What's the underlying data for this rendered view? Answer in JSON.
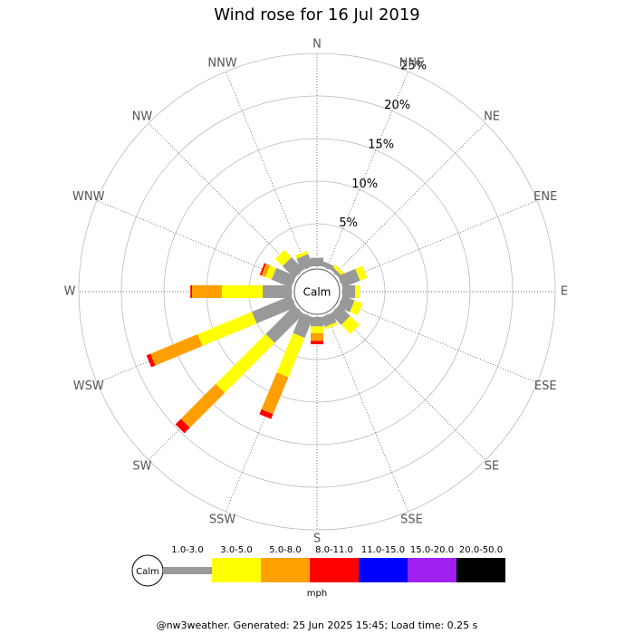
{
  "chart_data": {
    "type": "windrose",
    "title": "Wind rose for 16 Jul 2019",
    "calm_label": "Calm",
    "categories": [
      "N",
      "NNE",
      "NE",
      "ENE",
      "E",
      "ESE",
      "SE",
      "SSE",
      "S",
      "SSW",
      "SW",
      "WSW",
      "W",
      "WNW",
      "NW",
      "NNW"
    ],
    "series": [
      {
        "name": "1.0-3.0",
        "color": "#999999",
        "values": [
          1.0,
          0.6,
          0.4,
          2.2,
          1.5,
          1.5,
          1.8,
          1.2,
          1.1,
          2.6,
          4.8,
          5.0,
          3.4,
          2.5,
          2.0,
          1.5
        ]
      },
      {
        "name": "3.0-5.0",
        "color": "#ffff00",
        "values": [
          0.0,
          0.0,
          0.4,
          0.9,
          0.5,
          1.0,
          1.5,
          0.3,
          0.8,
          5.0,
          8.3,
          6.9,
          4.8,
          0.8,
          1.2,
          0.4
        ]
      },
      {
        "name": "5.0-8.0",
        "color": "#ff9f00",
        "values": [
          0,
          0,
          0,
          0,
          0,
          0,
          0,
          0,
          0.9,
          4.7,
          5.8,
          6.0,
          3.5,
          0.5,
          0,
          0
        ]
      },
      {
        "name": "8.0-11.0",
        "color": "#ff0000",
        "values": [
          0,
          0,
          0,
          0,
          0,
          0,
          0,
          0,
          0.4,
          0.6,
          0.9,
          0.5,
          0.2,
          0.2,
          0,
          0
        ]
      },
      {
        "name": "11.0-15.0",
        "color": "#0000ff",
        "values": [
          0,
          0,
          0,
          0,
          0,
          0,
          0,
          0,
          0,
          0,
          0,
          0,
          0,
          0,
          0,
          0
        ]
      },
      {
        "name": "15.0-20.0",
        "color": "#a020f0",
        "values": [
          0,
          0,
          0,
          0,
          0,
          0,
          0,
          0,
          0,
          0,
          0,
          0,
          0,
          0,
          0,
          0
        ]
      },
      {
        "name": "20.0-50.0",
        "color": "#000000",
        "values": [
          0,
          0,
          0,
          0,
          0,
          0,
          0,
          0,
          0,
          0,
          0,
          0,
          0,
          0,
          0,
          0
        ]
      }
    ],
    "rlim": [
      0,
      25
    ],
    "rticks": [
      {
        "value": 5,
        "label": "5%"
      },
      {
        "value": 10,
        "label": "10%"
      },
      {
        "value": 15,
        "label": "15%"
      },
      {
        "value": 20,
        "label": "20%"
      },
      {
        "value": 25,
        "label": "25%"
      }
    ],
    "unit_label": "mph",
    "footer": "@nw3weather. Generated: 25 Jun 2025 15:45; Load time: 0.25 s"
  }
}
